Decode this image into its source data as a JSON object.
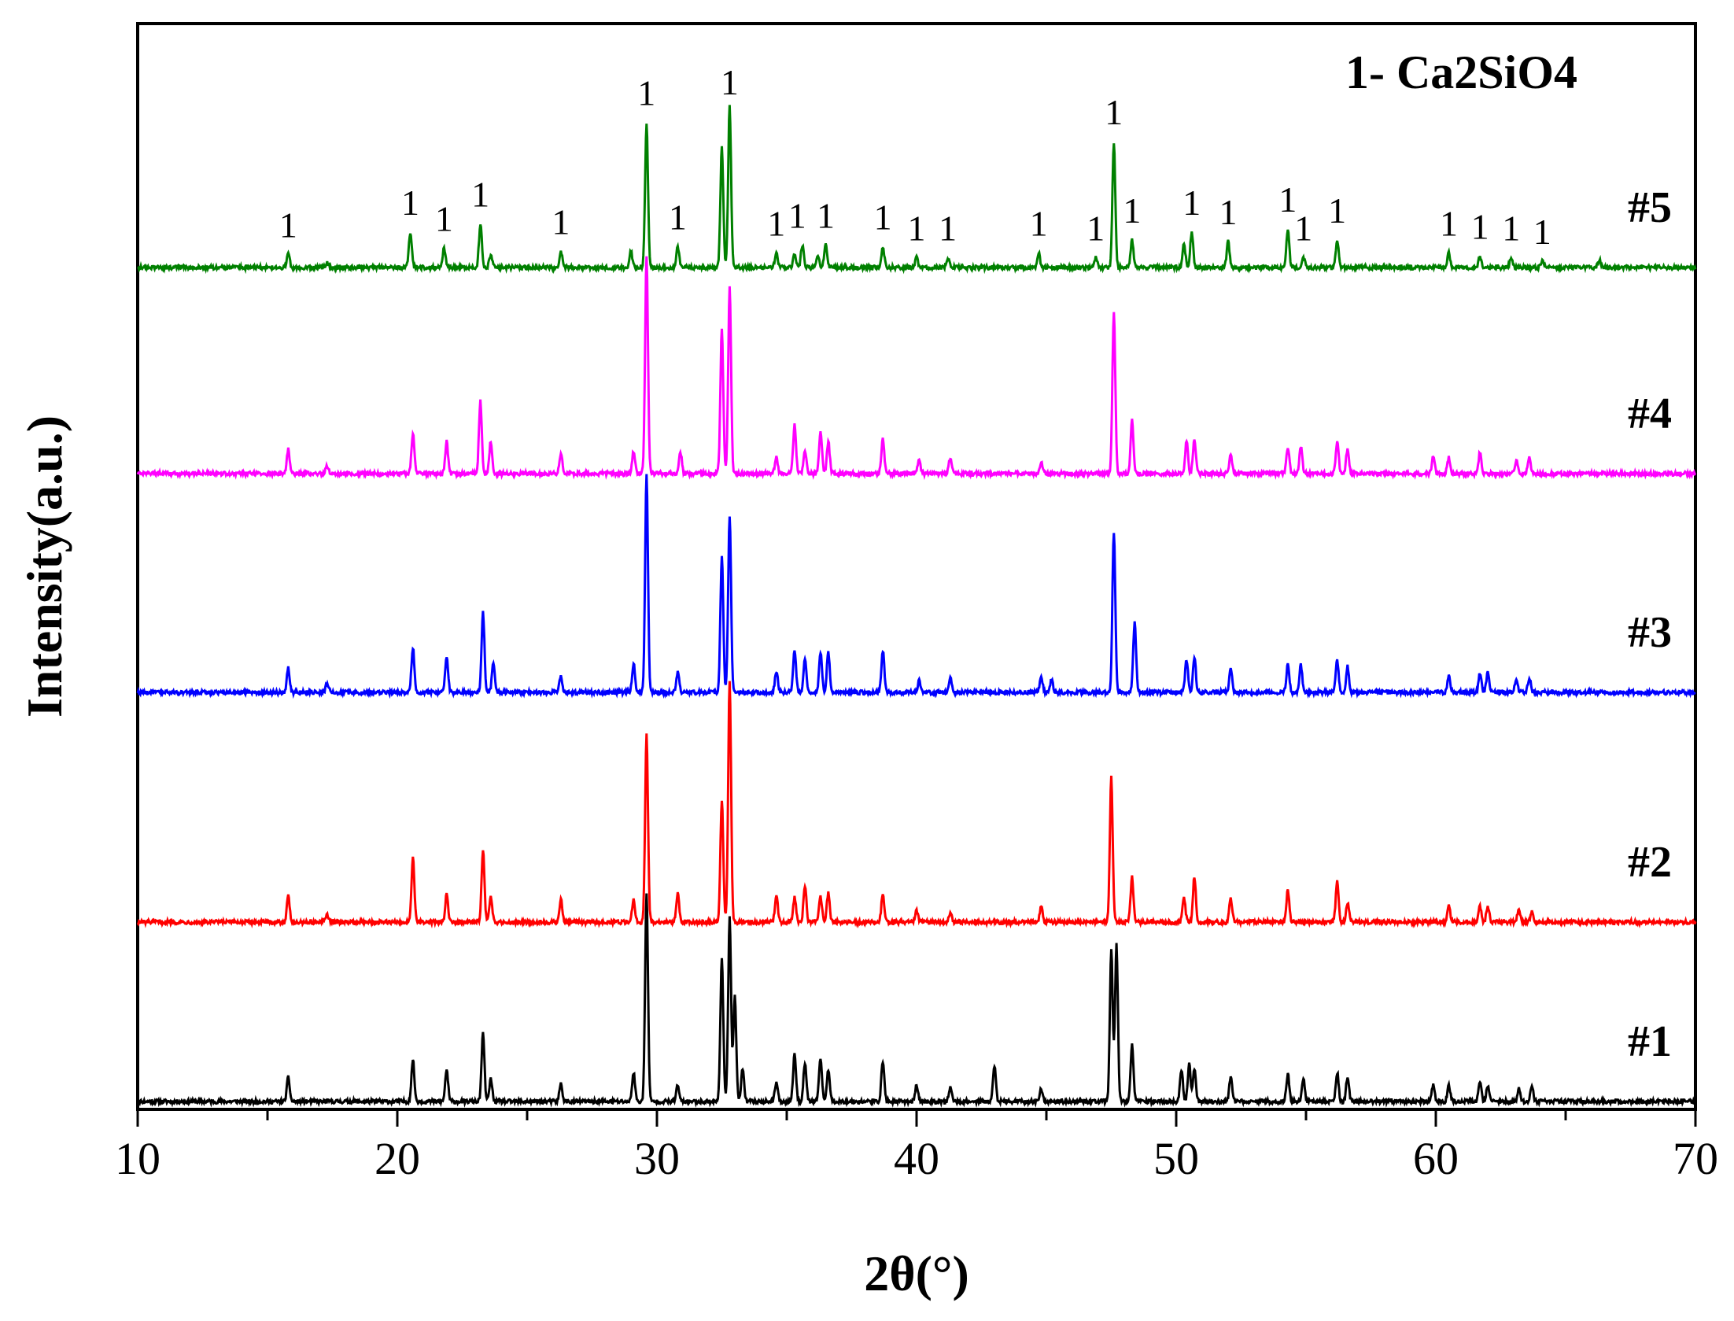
{
  "chart_data": {
    "type": "line",
    "title": "",
    "xlabel": "2θ(°)",
    "ylabel": "Intensity(a.u.)",
    "xlim": [
      10,
      70
    ],
    "x_ticks": [
      "10",
      "20",
      "30",
      "40",
      "50",
      "60",
      "70"
    ],
    "y_ticks": "none",
    "grid": false,
    "annotation": "1- Ca2SiO4",
    "peak_marker_label": "1",
    "peak_marker_positions": [
      15.8,
      20.5,
      21.8,
      23.2,
      26.3,
      29.6,
      30.8,
      32.8,
      34.6,
      35.4,
      36.5,
      38.7,
      40.0,
      41.2,
      44.7,
      46.9,
      47.6,
      48.3,
      50.6,
      52.0,
      54.3,
      54.9,
      56.2,
      60.5,
      61.7,
      62.9,
      64.1
    ],
    "series": [
      {
        "name": "#1",
        "color": "#000000",
        "baseline": 0.0,
        "peaks": [
          [
            15.8,
            0.15
          ],
          [
            20.6,
            0.26
          ],
          [
            21.9,
            0.2
          ],
          [
            23.3,
            0.42
          ],
          [
            23.6,
            0.14
          ],
          [
            26.3,
            0.11
          ],
          [
            29.1,
            0.18
          ],
          [
            29.6,
            1.3
          ],
          [
            30.8,
            0.1
          ],
          [
            32.5,
            0.9
          ],
          [
            32.8,
            1.15
          ],
          [
            33.0,
            0.65
          ],
          [
            33.3,
            0.2
          ],
          [
            34.6,
            0.12
          ],
          [
            35.3,
            0.3
          ],
          [
            35.7,
            0.24
          ],
          [
            36.3,
            0.27
          ],
          [
            36.6,
            0.2
          ],
          [
            38.7,
            0.25
          ],
          [
            40.0,
            0.1
          ],
          [
            41.3,
            0.09
          ],
          [
            43.0,
            0.22
          ],
          [
            44.8,
            0.08
          ],
          [
            47.5,
            0.95
          ],
          [
            47.7,
            0.97
          ],
          [
            48.3,
            0.35
          ],
          [
            50.2,
            0.2
          ],
          [
            50.5,
            0.23
          ],
          [
            50.7,
            0.2
          ],
          [
            52.1,
            0.15
          ],
          [
            54.3,
            0.17
          ],
          [
            54.9,
            0.14
          ],
          [
            56.2,
            0.18
          ],
          [
            56.6,
            0.15
          ],
          [
            59.9,
            0.1
          ],
          [
            60.5,
            0.1
          ],
          [
            61.7,
            0.12
          ],
          [
            62.0,
            0.1
          ],
          [
            63.2,
            0.08
          ],
          [
            63.7,
            0.09
          ]
        ]
      },
      {
        "name": "#2",
        "color": "#ff0000",
        "baseline": 1.0,
        "peaks": [
          [
            15.8,
            0.16
          ],
          [
            17.3,
            0.05
          ],
          [
            20.6,
            0.4
          ],
          [
            21.9,
            0.17
          ],
          [
            23.3,
            0.45
          ],
          [
            23.6,
            0.15
          ],
          [
            26.3,
            0.14
          ],
          [
            29.1,
            0.14
          ],
          [
            29.6,
            1.16
          ],
          [
            30.8,
            0.18
          ],
          [
            32.5,
            0.76
          ],
          [
            32.8,
            1.5
          ],
          [
            34.6,
            0.17
          ],
          [
            35.3,
            0.15
          ],
          [
            35.7,
            0.22
          ],
          [
            36.3,
            0.16
          ],
          [
            36.6,
            0.18
          ],
          [
            38.7,
            0.17
          ],
          [
            40.0,
            0.07
          ],
          [
            41.3,
            0.06
          ],
          [
            44.8,
            0.1
          ],
          [
            47.5,
            0.9
          ],
          [
            48.3,
            0.28
          ],
          [
            50.3,
            0.15
          ],
          [
            50.7,
            0.28
          ],
          [
            52.1,
            0.15
          ],
          [
            54.3,
            0.2
          ],
          [
            56.2,
            0.25
          ],
          [
            56.6,
            0.12
          ],
          [
            60.5,
            0.1
          ],
          [
            61.7,
            0.1
          ],
          [
            62.0,
            0.1
          ],
          [
            63.2,
            0.08
          ],
          [
            63.7,
            0.07
          ]
        ]
      },
      {
        "name": "#3",
        "color": "#0000ff",
        "baseline": 2.0,
        "peaks": [
          [
            15.8,
            0.15
          ],
          [
            17.3,
            0.06
          ],
          [
            20.6,
            0.28
          ],
          [
            21.9,
            0.22
          ],
          [
            23.3,
            0.5
          ],
          [
            23.7,
            0.18
          ],
          [
            26.3,
            0.1
          ],
          [
            29.1,
            0.18
          ],
          [
            29.6,
            1.35
          ],
          [
            30.8,
            0.12
          ],
          [
            32.5,
            0.85
          ],
          [
            32.8,
            1.1
          ],
          [
            34.6,
            0.13
          ],
          [
            35.3,
            0.26
          ],
          [
            35.7,
            0.2
          ],
          [
            36.3,
            0.25
          ],
          [
            36.6,
            0.25
          ],
          [
            38.7,
            0.26
          ],
          [
            40.1,
            0.07
          ],
          [
            41.3,
            0.1
          ],
          [
            44.8,
            0.1
          ],
          [
            45.2,
            0.08
          ],
          [
            47.6,
            1.0
          ],
          [
            48.4,
            0.43
          ],
          [
            50.4,
            0.2
          ],
          [
            50.7,
            0.22
          ],
          [
            52.1,
            0.15
          ],
          [
            54.3,
            0.18
          ],
          [
            54.8,
            0.17
          ],
          [
            56.2,
            0.2
          ],
          [
            56.6,
            0.16
          ],
          [
            60.5,
            0.1
          ],
          [
            61.7,
            0.12
          ],
          [
            62.0,
            0.12
          ],
          [
            63.1,
            0.08
          ],
          [
            63.6,
            0.09
          ]
        ]
      },
      {
        "name": "#4",
        "color": "#ff00ff",
        "baseline": 3.0,
        "peaks": [
          [
            15.8,
            0.15
          ],
          [
            17.3,
            0.05
          ],
          [
            20.6,
            0.25
          ],
          [
            21.9,
            0.2
          ],
          [
            23.2,
            0.45
          ],
          [
            23.6,
            0.2
          ],
          [
            26.3,
            0.12
          ],
          [
            29.1,
            0.14
          ],
          [
            29.6,
            1.35
          ],
          [
            30.9,
            0.14
          ],
          [
            32.5,
            0.9
          ],
          [
            32.8,
            1.15
          ],
          [
            34.6,
            0.1
          ],
          [
            35.3,
            0.3
          ],
          [
            35.7,
            0.15
          ],
          [
            36.3,
            0.26
          ],
          [
            36.6,
            0.2
          ],
          [
            38.7,
            0.22
          ],
          [
            40.1,
            0.08
          ],
          [
            41.3,
            0.1
          ],
          [
            44.8,
            0.07
          ],
          [
            47.6,
            1.0
          ],
          [
            48.3,
            0.33
          ],
          [
            50.4,
            0.2
          ],
          [
            50.7,
            0.22
          ],
          [
            52.1,
            0.12
          ],
          [
            54.3,
            0.16
          ],
          [
            54.8,
            0.17
          ],
          [
            56.2,
            0.2
          ],
          [
            56.6,
            0.15
          ],
          [
            59.9,
            0.1
          ],
          [
            60.5,
            0.1
          ],
          [
            61.7,
            0.13
          ],
          [
            63.1,
            0.08
          ],
          [
            63.6,
            0.1
          ]
        ]
      },
      {
        "name": "#5",
        "color": "#008000",
        "baseline": 4.0,
        "peaks": [
          [
            15.8,
            0.08
          ],
          [
            17.3,
            0.03
          ],
          [
            20.5,
            0.22
          ],
          [
            21.8,
            0.12
          ],
          [
            23.2,
            0.27
          ],
          [
            23.6,
            0.08
          ],
          [
            26.3,
            0.1
          ],
          [
            29.0,
            0.1
          ],
          [
            29.6,
            0.9
          ],
          [
            30.8,
            0.13
          ],
          [
            32.5,
            0.75
          ],
          [
            32.8,
            1.0
          ],
          [
            34.6,
            0.09
          ],
          [
            35.3,
            0.08
          ],
          [
            35.6,
            0.14
          ],
          [
            36.2,
            0.08
          ],
          [
            36.5,
            0.14
          ],
          [
            38.7,
            0.13
          ],
          [
            40.0,
            0.06
          ],
          [
            41.2,
            0.06
          ],
          [
            44.7,
            0.09
          ],
          [
            46.9,
            0.06
          ],
          [
            47.6,
            0.78
          ],
          [
            48.3,
            0.17
          ],
          [
            50.3,
            0.15
          ],
          [
            50.6,
            0.22
          ],
          [
            52.0,
            0.16
          ],
          [
            54.3,
            0.24
          ],
          [
            54.9,
            0.06
          ],
          [
            56.2,
            0.17
          ],
          [
            60.5,
            0.09
          ],
          [
            61.7,
            0.07
          ],
          [
            62.9,
            0.06
          ],
          [
            64.1,
            0.04
          ],
          [
            66.3,
            0.05
          ]
        ]
      }
    ]
  }
}
